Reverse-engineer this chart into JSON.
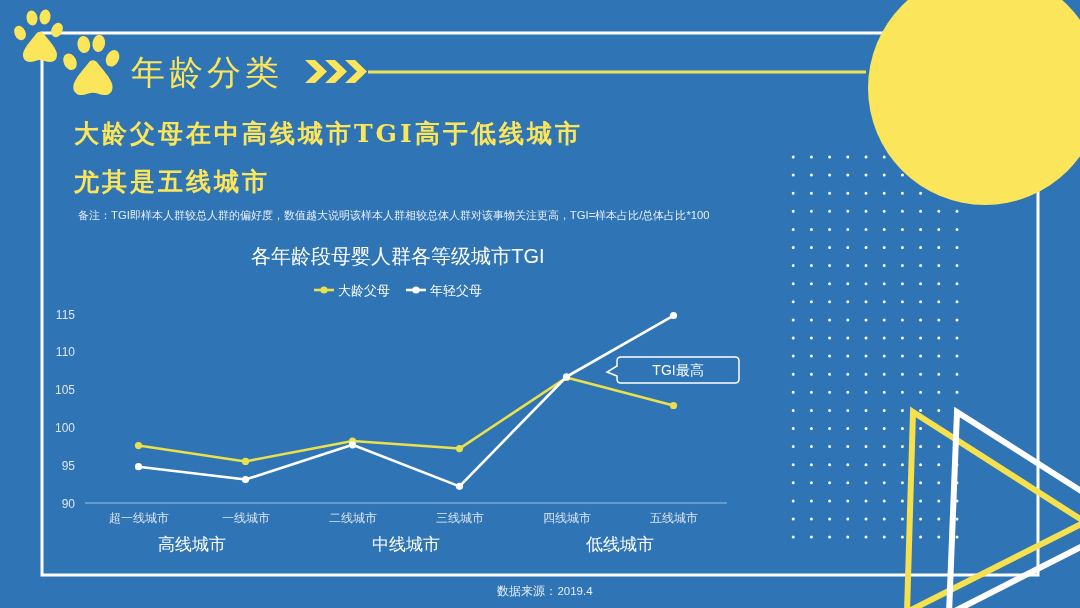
{
  "chart_data": {
    "type": "line",
    "title": "各年龄段母婴人群各等级城市TGI",
    "subtitle": "大龄父母在中高线城市TGI高于低线城市尤其是五线城市",
    "categories": [
      "超一线城市",
      "一线城市",
      "二线城市",
      "三线城市",
      "四线城市",
      "五线城市"
    ],
    "series": [
      {
        "name": "大龄父母",
        "color": "#ebe04c",
        "values": [
          97.6,
          95.5,
          98.2,
          97.2,
          106.6,
          102.9
        ]
      },
      {
        "name": "年轻父母",
        "color": "#ffffff",
        "values": [
          94.8,
          93.1,
          97.7,
          92.2,
          106.7,
          114.8
        ]
      }
    ],
    "ylim": [
      90,
      115
    ],
    "yticks": [
      90,
      95,
      100,
      105,
      110,
      115
    ],
    "marker": "circle",
    "line_style": "solid",
    "legend": "top",
    "annotations": [
      "年龄分类",
      "备注：TGI即样本人群较总人群的偏好度，数值越大说明该样本人群相较总体人群对该事物关注更高，TGI=样本占比/总体占比*100",
      "高线城市",
      "中线城市",
      "低线城市",
      "数据来源：2019.4",
      "TGI最高"
    ]
  }
}
